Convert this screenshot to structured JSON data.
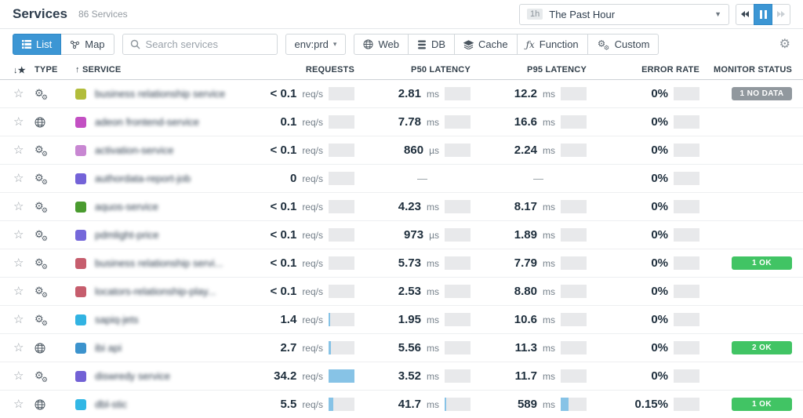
{
  "header": {
    "title": "Services",
    "subtitle": "86 Services",
    "time_picker": {
      "range_badge": "1h",
      "label": "The Past Hour"
    }
  },
  "toolbar": {
    "list_label": "List",
    "map_label": "Map",
    "search_placeholder": "Search services",
    "env_filter": "env:prd",
    "env_caret": "▾",
    "filters": {
      "web": "Web",
      "db": "DB",
      "cache": "Cache",
      "function": "Function",
      "custom": "Custom"
    }
  },
  "table": {
    "columns": {
      "star": "↓★",
      "type": "TYPE",
      "service": "↑ SERVICE",
      "requests": "REQUESTS",
      "p50": "P50 LATENCY",
      "p95": "P95 LATENCY",
      "error": "ERROR RATE",
      "monitor": "MONITOR STATUS"
    },
    "rows": [
      {
        "type": "custom",
        "color": "#b2bd3b",
        "name": "business relationship service",
        "requests": {
          "value": "< 0.1",
          "unit": "req/s",
          "spark": 0
        },
        "p50": {
          "value": "2.81",
          "unit": "ms",
          "spark": 0
        },
        "p95": {
          "value": "12.2",
          "unit": "ms",
          "spark": 0
        },
        "error": {
          "value": "0%",
          "unit": "",
          "spark": 0
        },
        "monitor": {
          "label": "1 NO DATA",
          "kind": "nodata"
        }
      },
      {
        "type": "web",
        "color": "#c350c3",
        "name": "adeon frontend-service",
        "requests": {
          "value": "0.1",
          "unit": "req/s",
          "spark": 0
        },
        "p50": {
          "value": "7.78",
          "unit": "ms",
          "spark": 0
        },
        "p95": {
          "value": "16.6",
          "unit": "ms",
          "spark": 0
        },
        "error": {
          "value": "0%",
          "unit": "",
          "spark": 0
        },
        "monitor": null
      },
      {
        "type": "custom",
        "color": "#c887d2",
        "name": "activation-service",
        "requests": {
          "value": "< 0.1",
          "unit": "req/s",
          "spark": 0
        },
        "p50": {
          "value": "860",
          "unit": "µs",
          "spark": 0
        },
        "p95": {
          "value": "2.24",
          "unit": "ms",
          "spark": 0
        },
        "error": {
          "value": "0%",
          "unit": "",
          "spark": 0
        },
        "monitor": null
      },
      {
        "type": "custom",
        "color": "#7463d8",
        "name": "authordata-report-job",
        "requests": {
          "value": "0",
          "unit": "req/s",
          "spark": 0
        },
        "p50": {
          "value": "—",
          "unit": "",
          "spark": null
        },
        "p95": {
          "value": "—",
          "unit": "",
          "spark": null
        },
        "error": {
          "value": "0%",
          "unit": "",
          "spark": 0
        },
        "monitor": null
      },
      {
        "type": "custom",
        "color": "#4a9b2f",
        "name": "aquos-service",
        "requests": {
          "value": "< 0.1",
          "unit": "req/s",
          "spark": 0
        },
        "p50": {
          "value": "4.23",
          "unit": "ms",
          "spark": 0
        },
        "p95": {
          "value": "8.17",
          "unit": "ms",
          "spark": 0
        },
        "error": {
          "value": "0%",
          "unit": "",
          "spark": 0
        },
        "monitor": null
      },
      {
        "type": "custom",
        "color": "#7568da",
        "name": "pdmlight-price",
        "requests": {
          "value": "< 0.1",
          "unit": "req/s",
          "spark": 0
        },
        "p50": {
          "value": "973",
          "unit": "µs",
          "spark": 0
        },
        "p95": {
          "value": "1.89",
          "unit": "ms",
          "spark": 0
        },
        "error": {
          "value": "0%",
          "unit": "",
          "spark": 0
        },
        "monitor": null
      },
      {
        "type": "custom",
        "color": "#c65d6d",
        "name": "business relationship servi...",
        "requests": {
          "value": "< 0.1",
          "unit": "req/s",
          "spark": 0
        },
        "p50": {
          "value": "5.73",
          "unit": "ms",
          "spark": 0
        },
        "p95": {
          "value": "7.79",
          "unit": "ms",
          "spark": 0
        },
        "error": {
          "value": "0%",
          "unit": "",
          "spark": 0
        },
        "monitor": {
          "label": "1 OK",
          "kind": "ok"
        }
      },
      {
        "type": "custom",
        "color": "#c65d6d",
        "name": "locators-relationship-play...",
        "requests": {
          "value": "< 0.1",
          "unit": "req/s",
          "spark": 0
        },
        "p50": {
          "value": "2.53",
          "unit": "ms",
          "spark": 0
        },
        "p95": {
          "value": "8.80",
          "unit": "ms",
          "spark": 0
        },
        "error": {
          "value": "0%",
          "unit": "",
          "spark": 0
        },
        "monitor": null
      },
      {
        "type": "custom",
        "color": "#32b3e2",
        "name": "sapiq-jets",
        "requests": {
          "value": "1.4",
          "unit": "req/s",
          "spark": 6
        },
        "p50": {
          "value": "1.95",
          "unit": "ms",
          "spark": 0
        },
        "p95": {
          "value": "10.6",
          "unit": "ms",
          "spark": 0
        },
        "error": {
          "value": "0%",
          "unit": "",
          "spark": 0
        },
        "monitor": null
      },
      {
        "type": "web",
        "color": "#3c93cd",
        "name": "ibi api",
        "requests": {
          "value": "2.7",
          "unit": "req/s",
          "spark": 9
        },
        "p50": {
          "value": "5.56",
          "unit": "ms",
          "spark": 0
        },
        "p95": {
          "value": "11.3",
          "unit": "ms",
          "spark": 0
        },
        "error": {
          "value": "0%",
          "unit": "",
          "spark": 0
        },
        "monitor": {
          "label": "2 OK",
          "kind": "ok"
        }
      },
      {
        "type": "custom",
        "color": "#7261d5",
        "name": "diswredy service",
        "requests": {
          "value": "34.2",
          "unit": "req/s",
          "spark": 100
        },
        "p50": {
          "value": "3.52",
          "unit": "ms",
          "spark": 0
        },
        "p95": {
          "value": "11.7",
          "unit": "ms",
          "spark": 0
        },
        "error": {
          "value": "0%",
          "unit": "",
          "spark": 0
        },
        "monitor": null
      },
      {
        "type": "web",
        "color": "#32b7e5",
        "name": "dbl-stic",
        "requests": {
          "value": "5.5",
          "unit": "req/s",
          "spark": 18
        },
        "p50": {
          "value": "41.7",
          "unit": "ms",
          "spark": 7
        },
        "p95": {
          "value": "589",
          "unit": "ms",
          "spark": 30
        },
        "error": {
          "value": "0.15%",
          "unit": "",
          "spark": 0
        },
        "monitor": {
          "label": "1 OK",
          "kind": "ok"
        }
      }
    ]
  },
  "colors": {
    "accent_blue": "#3c96d4",
    "ok_green": "#41c464",
    "nodata_gray": "#91989e",
    "spark_blue": "#87c3e6",
    "spark_bg": "#e8e9eb"
  }
}
